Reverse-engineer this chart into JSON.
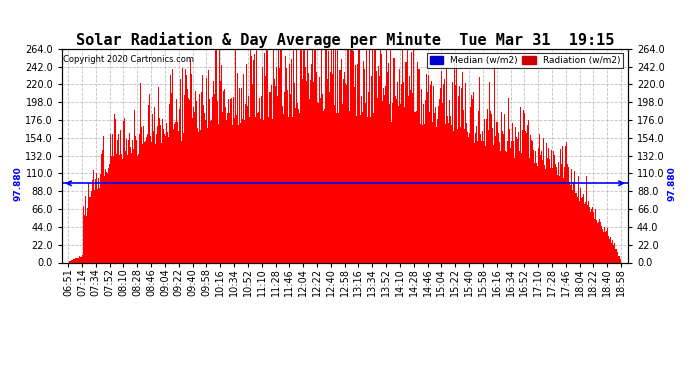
{
  "title": "Solar Radiation & Day Average per Minute  Tue Mar 31  19:15",
  "copyright": "Copyright 2020 Cartronics.com",
  "median_value": 97.88,
  "y_max": 264.0,
  "y_min": 0.0,
  "y_ticks": [
    0.0,
    22.0,
    44.0,
    66.0,
    88.0,
    110.0,
    132.0,
    154.0,
    176.0,
    198.0,
    220.0,
    242.0,
    264.0
  ],
  "legend_median_color": "#0000cc",
  "legend_radiation_color": "#cc0000",
  "bar_color": "#ff0000",
  "median_line_color": "#0000ff",
  "background_color": "#ffffff",
  "grid_color": "#c0c0c0",
  "title_fontsize": 11,
  "tick_fontsize": 7,
  "n_minutes": 732,
  "x_tick_labels": [
    "06:51",
    "07:14",
    "07:34",
    "07:52",
    "08:10",
    "08:28",
    "08:46",
    "09:04",
    "09:22",
    "09:40",
    "09:58",
    "10:16",
    "10:34",
    "10:52",
    "11:10",
    "11:28",
    "11:46",
    "12:04",
    "12:22",
    "12:40",
    "12:58",
    "13:16",
    "13:34",
    "13:52",
    "14:10",
    "14:28",
    "14:46",
    "15:04",
    "15:22",
    "15:40",
    "15:58",
    "16:16",
    "16:34",
    "16:52",
    "17:10",
    "17:28",
    "17:46",
    "18:04",
    "18:22",
    "18:40",
    "18:58"
  ]
}
